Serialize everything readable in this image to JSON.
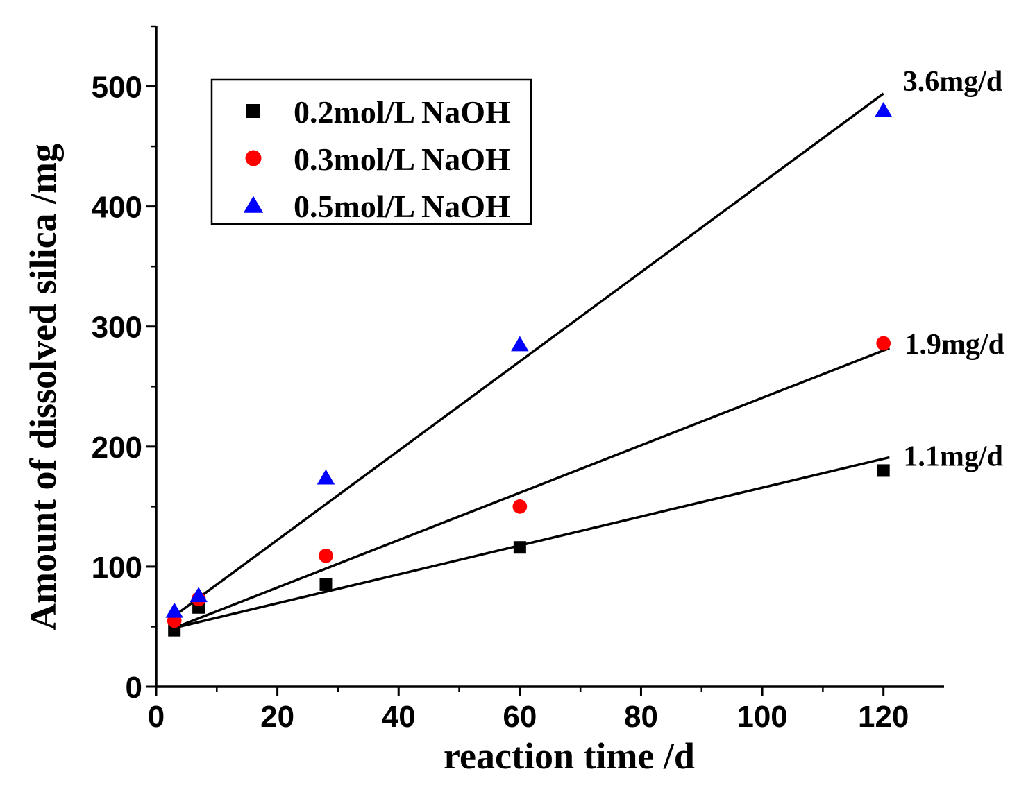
{
  "chart_data": {
    "type": "scatter",
    "title": "",
    "xlabel": "reaction time /d",
    "ylabel": "Amount of dissolved silica /mg",
    "xlim": [
      0,
      130
    ],
    "ylim": [
      0,
      550
    ],
    "xticks": [
      0,
      20,
      40,
      60,
      80,
      100,
      120
    ],
    "yticks": [
      0,
      100,
      200,
      300,
      400,
      500
    ],
    "xtick_labels": [
      "0",
      "20",
      "40",
      "60",
      "80",
      "100",
      "120"
    ],
    "ytick_labels": [
      "0",
      "100",
      "200",
      "300",
      "400",
      "500"
    ],
    "grid": false,
    "legend_position": "top-left",
    "series": [
      {
        "name": "0.2mol/L NaOH",
        "marker": "square",
        "color": "#000000",
        "x": [
          3,
          7,
          28,
          60,
          120
        ],
        "y": [
          47,
          66,
          85,
          116,
          180
        ],
        "fit": {
          "x0": 3,
          "y0": 49,
          "x1": 121,
          "y1": 191,
          "label": "1.1mg/d"
        }
      },
      {
        "name": "0.3mol/L NaOH",
        "marker": "circle",
        "color": "#ff0000",
        "x": [
          3,
          7,
          28,
          60,
          120
        ],
        "y": [
          55,
          73,
          109,
          150,
          286
        ],
        "fit": {
          "x0": 3,
          "y0": 49,
          "x1": 121,
          "y1": 282,
          "label": "1.9mg/d"
        }
      },
      {
        "name": "0.5mol/L NaOH",
        "marker": "triangle",
        "color": "#0000ff",
        "x": [
          3,
          7,
          28,
          60,
          120
        ],
        "y": [
          63,
          76,
          174,
          285,
          480
        ],
        "fit": {
          "x0": 3,
          "y0": 59,
          "x1": 120,
          "y1": 494,
          "label": "3.6mg/d"
        }
      }
    ]
  }
}
